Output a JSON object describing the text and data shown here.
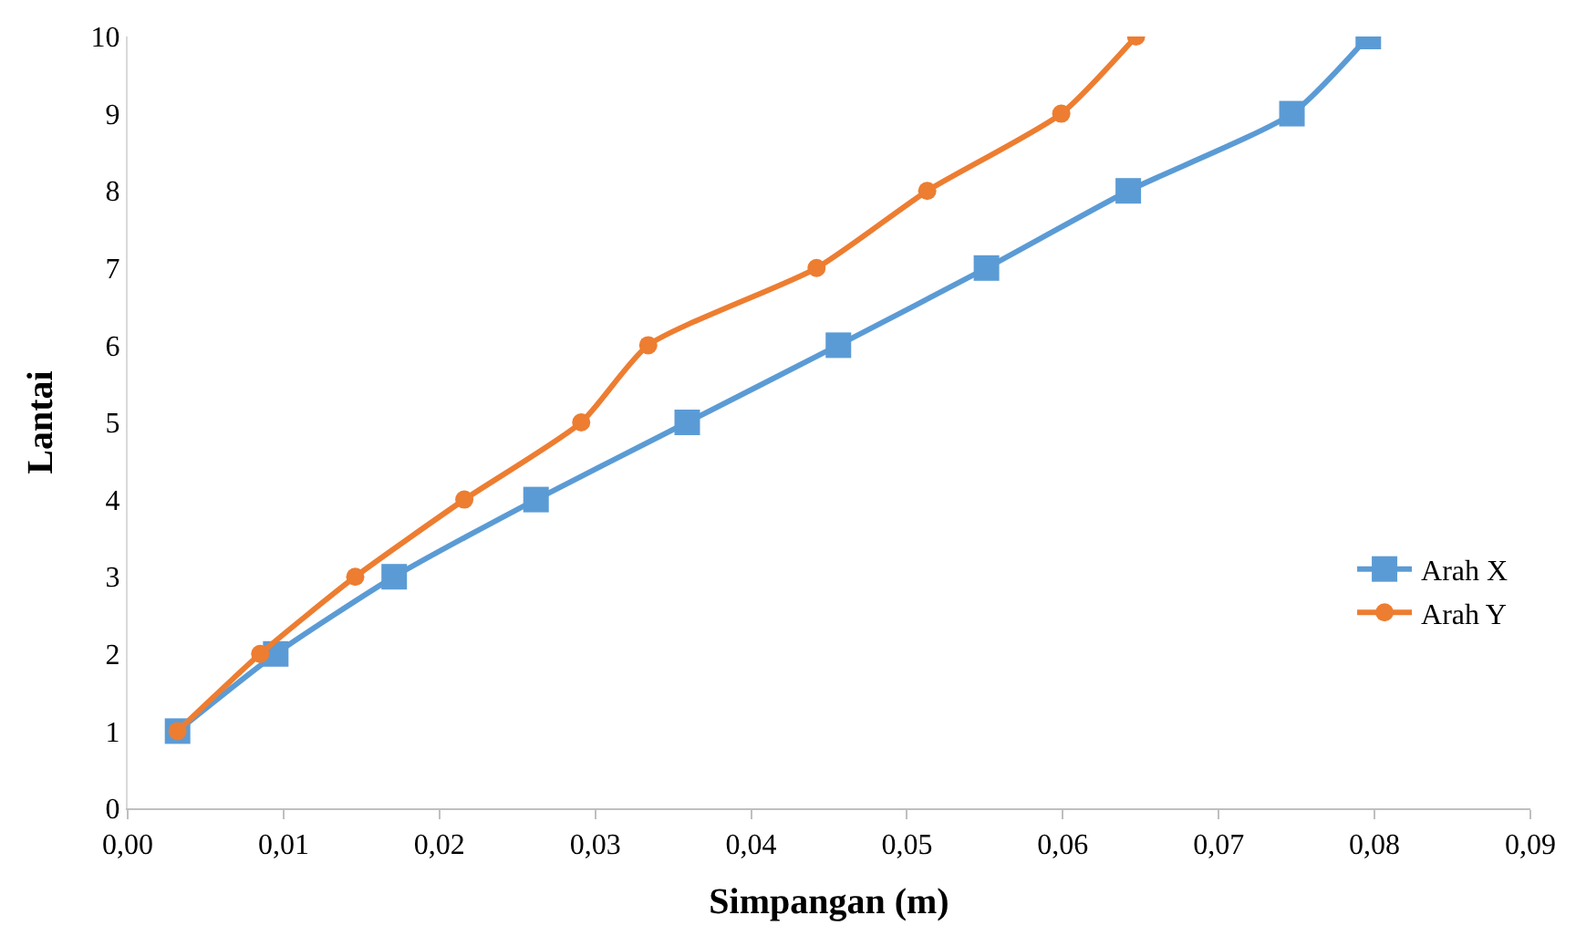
{
  "chart_data": {
    "type": "line",
    "xlabel": "Simpangan (m)",
    "ylabel": "Lantai",
    "series": [
      {
        "name": "Arah X",
        "color": "#5b9bd5",
        "marker": "square",
        "x": [
          0.0032,
          0.0095,
          0.0171,
          0.0262,
          0.0359,
          0.0456,
          0.0551,
          0.0642,
          0.0747,
          0.0796
        ],
        "values": [
          1,
          2,
          3,
          4,
          5,
          6,
          7,
          8,
          9,
          10
        ]
      },
      {
        "name": "Arah Y",
        "color": "#ed7d31",
        "marker": "circle",
        "x": [
          0.0032,
          0.0085,
          0.0146,
          0.0216,
          0.0291,
          0.0334,
          0.0442,
          0.0513,
          0.0599,
          0.0647
        ],
        "values": [
          1,
          2,
          3,
          4,
          5,
          6,
          7,
          8,
          9,
          10
        ]
      }
    ],
    "xlim": [
      0,
      0.09
    ],
    "xticks": [
      {
        "value": 0,
        "label": "0,00"
      },
      {
        "value": 0.01,
        "label": "0,01"
      },
      {
        "value": 0.02,
        "label": "0,02"
      },
      {
        "value": 0.03,
        "label": "0,03"
      },
      {
        "value": 0.04,
        "label": "0,04"
      },
      {
        "value": 0.05,
        "label": "0,05"
      },
      {
        "value": 0.06,
        "label": "0,06"
      },
      {
        "value": 0.07,
        "label": "0,07"
      },
      {
        "value": 0.08,
        "label": "0,08"
      },
      {
        "value": 0.09,
        "label": "0,09"
      }
    ],
    "ylim": [
      0,
      10
    ],
    "yticks": [
      0,
      1,
      2,
      3,
      4,
      5,
      6,
      7,
      8,
      9,
      10
    ],
    "legend": "right",
    "line_style": "solid"
  }
}
